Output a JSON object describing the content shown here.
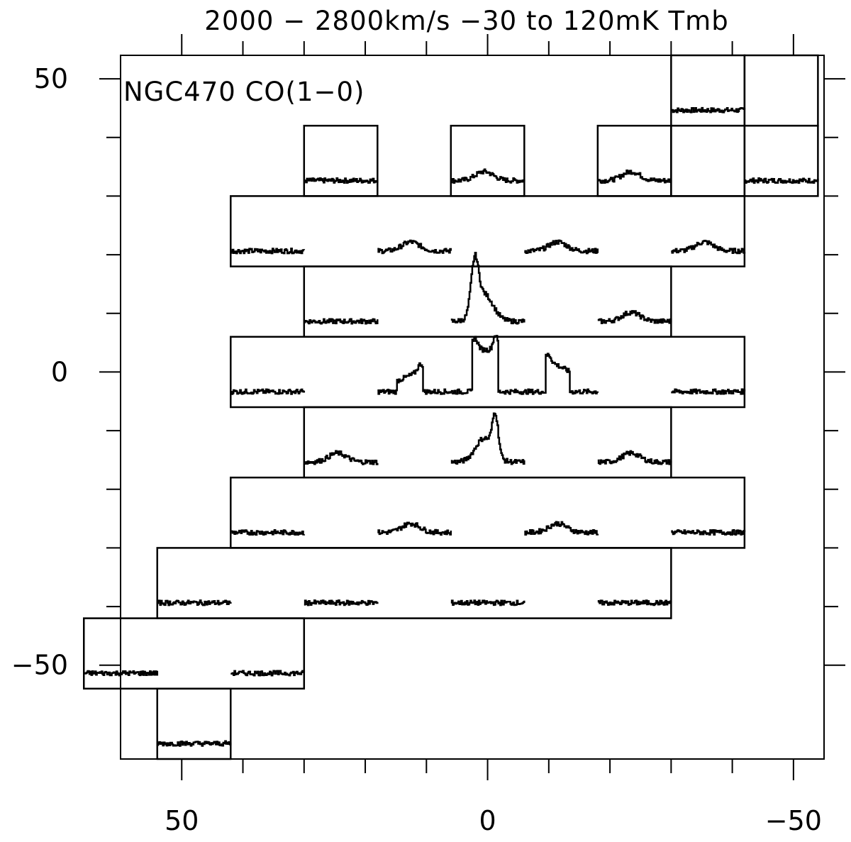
{
  "chart_data": {
    "type": "line",
    "title": "2000 − 2800km/s −30 to 120mK Tmb",
    "annotation": "NGC470 CO(1−0)",
    "xlim": [
      60,
      -55
    ],
    "ylim": [
      -66,
      54
    ],
    "x_ticks": [
      {
        "value": 50,
        "label": "50"
      },
      {
        "value": 0,
        "label": "0"
      },
      {
        "value": -50,
        "label": "−50"
      }
    ],
    "y_ticks": [
      {
        "value": 50,
        "label": "50"
      },
      {
        "value": 0,
        "label": "0"
      },
      {
        "value": -50,
        "label": "−50"
      }
    ],
    "velocity_range_kms": [
      2000,
      2800
    ],
    "temperature_range_mK": [
      -30,
      120
    ],
    "spectra": [
      {
        "dx": -36,
        "dy": 48,
        "shape": "flat"
      },
      {
        "dx": -48,
        "dy": 36,
        "shape": "flat"
      },
      {
        "dx": 24,
        "dy": 36,
        "shape": "flat"
      },
      {
        "dx": 0,
        "dy": 36,
        "shape": "weak"
      },
      {
        "dx": -24,
        "dy": 36,
        "shape": "weak"
      },
      {
        "dx": 36,
        "dy": 24,
        "shape": "flat"
      },
      {
        "dx": 12,
        "dy": 24,
        "shape": "weak"
      },
      {
        "dx": -12,
        "dy": 24,
        "shape": "weak"
      },
      {
        "dx": -36,
        "dy": 24,
        "shape": "weak"
      },
      {
        "dx": 24,
        "dy": 12,
        "shape": "flat"
      },
      {
        "dx": 0,
        "dy": 12,
        "shape": "strong"
      },
      {
        "dx": -24,
        "dy": 12,
        "shape": "weak"
      },
      {
        "dx": 36,
        "dy": 0,
        "shape": "flat"
      },
      {
        "dx": 12,
        "dy": 0,
        "shape": "redwing"
      },
      {
        "dx": 0,
        "dy": 0,
        "shape": "double"
      },
      {
        "dx": -12,
        "dy": 0,
        "shape": "bluewing"
      },
      {
        "dx": -36,
        "dy": 0,
        "shape": "flat"
      },
      {
        "dx": 24,
        "dy": -12,
        "shape": "weak"
      },
      {
        "dx": 0,
        "dy": -12,
        "shape": "strong_red"
      },
      {
        "dx": -24,
        "dy": -12,
        "shape": "weak"
      },
      {
        "dx": 36,
        "dy": -24,
        "shape": "flat"
      },
      {
        "dx": 12,
        "dy": -24,
        "shape": "weak"
      },
      {
        "dx": -12,
        "dy": -24,
        "shape": "weak"
      },
      {
        "dx": -36,
        "dy": -24,
        "shape": "flat"
      },
      {
        "dx": 48,
        "dy": -36,
        "shape": "flat"
      },
      {
        "dx": 24,
        "dy": -36,
        "shape": "flat"
      },
      {
        "dx": 0,
        "dy": -36,
        "shape": "flat"
      },
      {
        "dx": -24,
        "dy": -36,
        "shape": "flat"
      },
      {
        "dx": 60,
        "dy": -48,
        "shape": "flat"
      },
      {
        "dx": 36,
        "dy": -48,
        "shape": "flat"
      },
      {
        "dx": 48,
        "dy": -60,
        "shape": "flat"
      }
    ],
    "boxes": [
      {
        "x1": -30,
        "x2": -42,
        "y1": 42,
        "y2": 54
      },
      {
        "x1": -42,
        "x2": -54,
        "y1": 42,
        "y2": 54
      },
      {
        "x1": 30,
        "x2": 18,
        "y1": 30,
        "y2": 42
      },
      {
        "x1": 6,
        "x2": -6,
        "y1": 30,
        "y2": 42
      },
      {
        "x1": -18,
        "x2": -30,
        "y1": 30,
        "y2": 42
      },
      {
        "x1": -30,
        "x2": -42,
        "y1": 30,
        "y2": 42
      },
      {
        "x1": -42,
        "x2": -54,
        "y1": 30,
        "y2": 42
      },
      {
        "x1": 42,
        "x2": -42,
        "y1": 18,
        "y2": 30
      },
      {
        "x1": 30,
        "x2": -30,
        "y1": 6,
        "y2": 18
      },
      {
        "x1": 42,
        "x2": -42,
        "y1": -6,
        "y2": 6
      },
      {
        "x1": 30,
        "x2": -30,
        "y1": -18,
        "y2": -6
      },
      {
        "x1": 42,
        "x2": -42,
        "y1": -30,
        "y2": -18
      },
      {
        "x1": 54,
        "x2": -30,
        "y1": -42,
        "y2": -30
      },
      {
        "x1": 66,
        "x2": 30,
        "y1": -54,
        "y2": -42
      },
      {
        "x1": 54,
        "x2": 42,
        "y1": -66,
        "y2": -54
      }
    ],
    "grid": false
  }
}
